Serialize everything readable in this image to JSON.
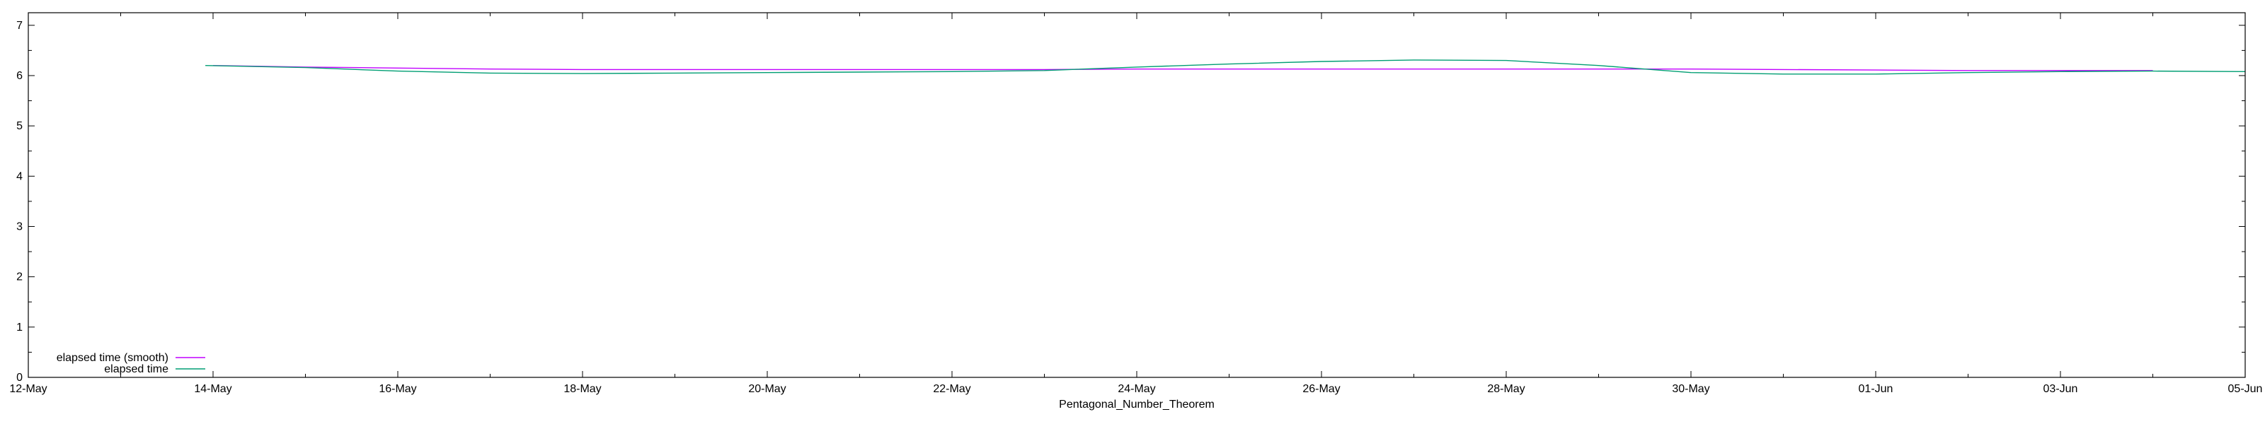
{
  "chart_data": {
    "type": "line",
    "title": "",
    "xlabel": "Pentagonal_Number_Theorem",
    "ylabel": "",
    "xlim": [
      "2024-05-12",
      "2024-06-05"
    ],
    "ylim": [
      0,
      7.25
    ],
    "x_tick_labels": [
      "12-May",
      "14-May",
      "16-May",
      "18-May",
      "20-May",
      "22-May",
      "24-May",
      "26-May",
      "28-May",
      "30-May",
      "01-Jun",
      "03-Jun",
      "05-Jun"
    ],
    "y_tick_labels": [
      "0",
      "1",
      "2",
      "3",
      "4",
      "5",
      "6",
      "7"
    ],
    "grid": false,
    "legend_position": "bottom-left",
    "series": [
      {
        "name": "elapsed time (smooth)",
        "color": "#c000ff",
        "x": [
          "2024-05-14",
          "2024-05-15",
          "2024-05-16",
          "2024-05-17",
          "2024-05-18",
          "2024-05-19",
          "2024-05-20",
          "2024-05-21",
          "2024-05-22",
          "2024-05-23",
          "2024-05-24",
          "2024-05-25",
          "2024-05-26",
          "2024-05-27",
          "2024-05-28",
          "2024-05-29",
          "2024-05-30",
          "2024-05-31",
          "2024-06-01",
          "2024-06-02",
          "2024-06-03",
          "2024-06-04"
        ],
        "y": [
          6.2,
          6.17,
          6.15,
          6.13,
          6.12,
          6.12,
          6.12,
          6.12,
          6.12,
          6.12,
          6.13,
          6.13,
          6.13,
          6.13,
          6.13,
          6.13,
          6.13,
          6.12,
          6.11,
          6.1,
          6.1,
          6.1
        ]
      },
      {
        "name": "elapsed time",
        "color": "#009e73",
        "x": [
          "2024-05-13T22:00",
          "2024-05-15",
          "2024-05-16",
          "2024-05-17",
          "2024-05-18",
          "2024-05-19",
          "2024-05-20",
          "2024-05-21",
          "2024-05-22",
          "2024-05-23",
          "2024-05-24",
          "2024-05-25",
          "2024-05-26",
          "2024-05-27",
          "2024-05-28",
          "2024-05-29",
          "2024-05-30",
          "2024-05-31",
          "2024-06-01",
          "2024-06-02",
          "2024-06-03",
          "2024-06-04",
          "2024-06-05"
        ],
        "y": [
          6.2,
          6.16,
          6.09,
          6.05,
          6.04,
          6.05,
          6.06,
          6.07,
          6.08,
          6.1,
          6.17,
          6.23,
          6.28,
          6.31,
          6.3,
          6.2,
          6.06,
          6.03,
          6.03,
          6.06,
          6.08,
          6.09,
          6.08
        ]
      }
    ]
  }
}
